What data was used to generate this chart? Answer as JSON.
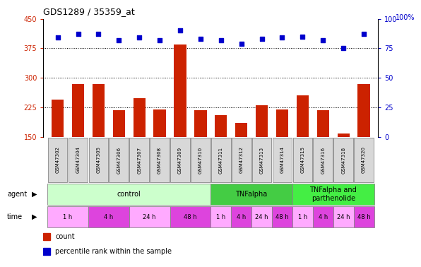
{
  "title": "GDS1289 / 35359_at",
  "samples": [
    "GSM47302",
    "GSM47304",
    "GSM47305",
    "GSM47306",
    "GSM47307",
    "GSM47308",
    "GSM47309",
    "GSM47310",
    "GSM47311",
    "GSM47312",
    "GSM47313",
    "GSM47314",
    "GSM47315",
    "GSM47316",
    "GSM47318",
    "GSM47320"
  ],
  "counts": [
    245,
    285,
    285,
    218,
    248,
    220,
    385,
    218,
    205,
    185,
    230,
    220,
    255,
    218,
    158,
    285
  ],
  "percentile": [
    84,
    87,
    87,
    82,
    84,
    82,
    90,
    83,
    82,
    79,
    83,
    84,
    85,
    82,
    75,
    87
  ],
  "ylim_left": [
    150,
    450
  ],
  "ylim_right": [
    0,
    100
  ],
  "yticks_left": [
    150,
    225,
    300,
    375,
    450
  ],
  "yticks_right": [
    0,
    25,
    50,
    75,
    100
  ],
  "bar_color": "#cc2200",
  "dot_color": "#0000cc",
  "agent_groups": [
    {
      "label": "control",
      "start": 0,
      "end": 8,
      "color": "#ccffcc"
    },
    {
      "label": "TNFalpha",
      "start": 8,
      "end": 12,
      "color": "#44cc44"
    },
    {
      "label": "TNFalpha and\nparthenolide",
      "start": 12,
      "end": 16,
      "color": "#44ee44"
    }
  ],
  "time_groups": [
    {
      "label": "1 h",
      "start": 0,
      "end": 2,
      "color": "#ffaaff"
    },
    {
      "label": "4 h",
      "start": 2,
      "end": 4,
      "color": "#dd44dd"
    },
    {
      "label": "24 h",
      "start": 4,
      "end": 6,
      "color": "#ffaaff"
    },
    {
      "label": "48 h",
      "start": 6,
      "end": 8,
      "color": "#dd44dd"
    },
    {
      "label": "1 h",
      "start": 8,
      "end": 9,
      "color": "#ffaaff"
    },
    {
      "label": "4 h",
      "start": 9,
      "end": 10,
      "color": "#dd44dd"
    },
    {
      "label": "24 h",
      "start": 10,
      "end": 11,
      "color": "#ffaaff"
    },
    {
      "label": "48 h",
      "start": 11,
      "end": 12,
      "color": "#dd44dd"
    },
    {
      "label": "1 h",
      "start": 12,
      "end": 13,
      "color": "#ffaaff"
    },
    {
      "label": "4 h",
      "start": 13,
      "end": 14,
      "color": "#dd44dd"
    },
    {
      "label": "24 h",
      "start": 14,
      "end": 15,
      "color": "#ffaaff"
    },
    {
      "label": "48 h",
      "start": 15,
      "end": 16,
      "color": "#dd44dd"
    }
  ],
  "bg_color": "#ffffff",
  "label_count": "count",
  "label_pct": "percentile rank within the sample",
  "right_axis_label": "100%"
}
